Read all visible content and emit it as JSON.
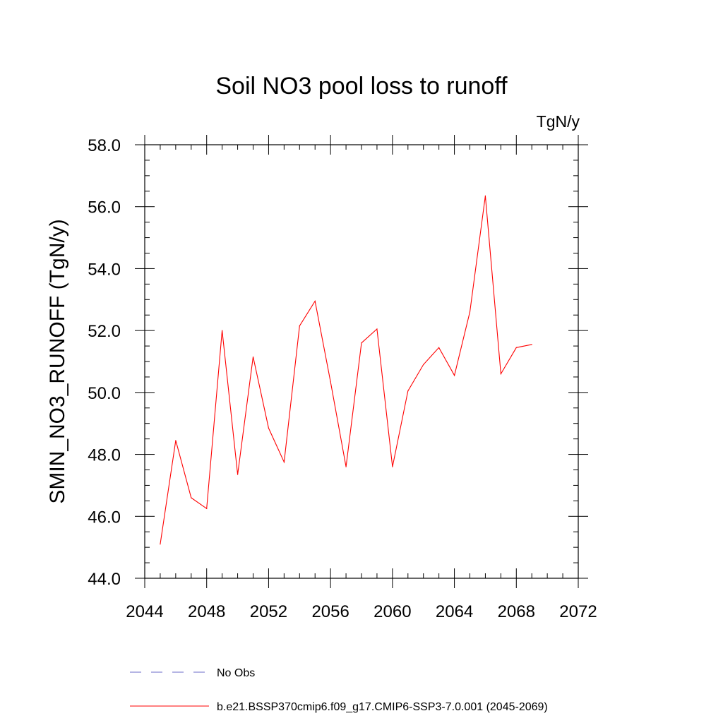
{
  "chart_data": {
    "type": "line",
    "title": "Soil NO3 pool loss to runoff",
    "units": "TgN/y",
    "ylabel": "SMIN_NO3_RUNOFF  (TgN/y)",
    "xlabel": "",
    "xlim": [
      2044,
      2072
    ],
    "ylim": [
      44.0,
      58.0
    ],
    "xticks": [
      "2044",
      "2048",
      "2052",
      "2056",
      "2060",
      "2064",
      "2068",
      "2072"
    ],
    "yticks": [
      "44.0",
      "46.0",
      "48.0",
      "50.0",
      "52.0",
      "54.0",
      "56.0",
      "58.0"
    ],
    "grid": false,
    "legend_position": "bottom",
    "series": [
      {
        "name": "No Obs",
        "style": "dashed",
        "color": "#6b6bc8",
        "x": [],
        "y": []
      },
      {
        "name": "b.e21.BSSP370cmip6.f09_g17.CMIP6-SSP3-7.0.001 (2045-2069)",
        "style": "solid",
        "color": "#ff0000",
        "x": [
          2045,
          2046,
          2047,
          2048,
          2049,
          2050,
          2051,
          2052,
          2053,
          2054,
          2055,
          2056,
          2057,
          2058,
          2059,
          2060,
          2061,
          2062,
          2063,
          2064,
          2065,
          2066,
          2067,
          2068,
          2069
        ],
        "y": [
          45.1,
          48.45,
          46.6,
          46.25,
          52.0,
          47.35,
          51.15,
          48.85,
          47.75,
          52.15,
          52.95,
          50.35,
          47.6,
          51.6,
          52.05,
          47.6,
          50.05,
          50.9,
          51.45,
          50.55,
          52.6,
          56.35,
          50.6,
          51.45,
          51.55
        ]
      }
    ]
  }
}
